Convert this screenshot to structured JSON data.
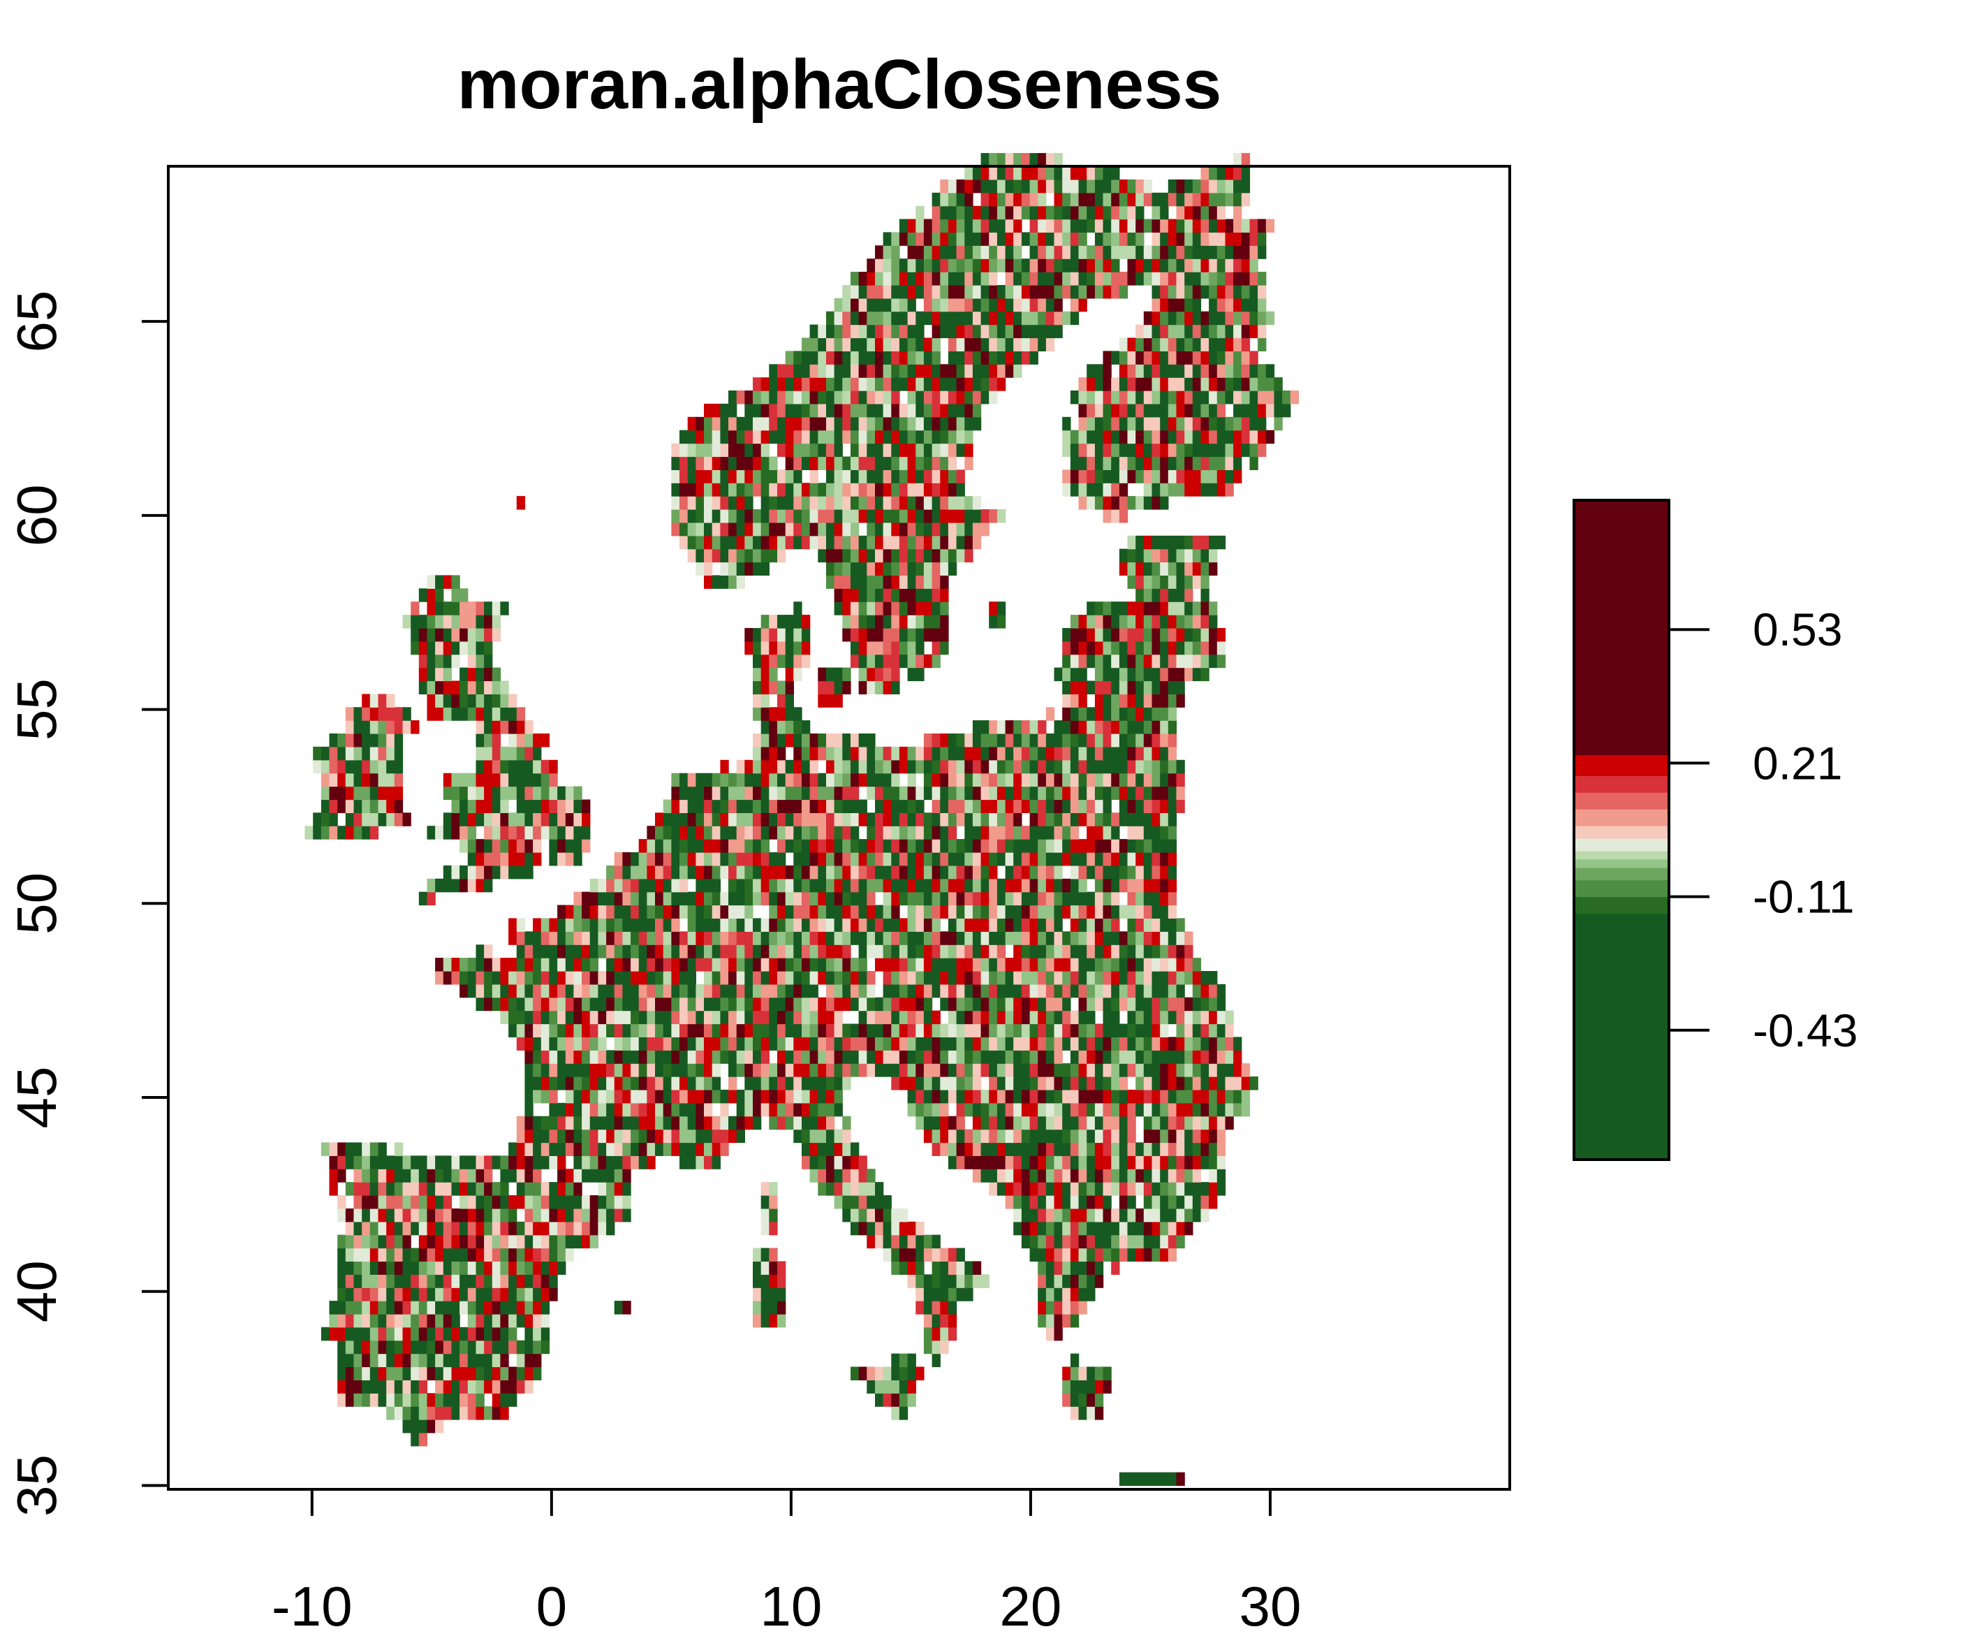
{
  "chart_data": {
    "type": "heatmap",
    "title": "moran.alphaCloseness",
    "xlabel": "",
    "ylabel": "",
    "xlim": [
      -16,
      40
    ],
    "ylim": [
      34.9,
      69
    ],
    "x_ticks": [
      "-10",
      "0",
      "10",
      "20",
      "30"
    ],
    "y_ticks": [
      "35",
      "40",
      "45",
      "50",
      "55",
      "60",
      "65"
    ],
    "grid": false,
    "description_of_values": "raster grid cells over Europe, per-cell value of moran.alphaCloseness",
    "value_range": [
      -0.74,
      0.84
    ],
    "legend": {
      "placement": "right",
      "ticks": [
        "0.53",
        "0.21",
        "-0.11",
        "-0.43"
      ],
      "tick_values": [
        0.53,
        0.21,
        -0.11,
        -0.43
      ],
      "color_bands": [
        {
          "from": -0.74,
          "to": -0.15,
          "color": "#165a22"
        },
        {
          "from": -0.15,
          "to": -0.11,
          "color": "#276c22"
        },
        {
          "from": -0.11,
          "to": -0.07,
          "color": "#4d8e43"
        },
        {
          "from": -0.07,
          "to": -0.04,
          "color": "#6ea65f"
        },
        {
          "from": -0.04,
          "to": -0.02,
          "color": "#94c488"
        },
        {
          "from": -0.02,
          "to": 0.0,
          "color": "#bad9ad"
        },
        {
          "from": 0.0,
          "to": 0.03,
          "color": "#e2ebd9"
        },
        {
          "from": 0.03,
          "to": 0.06,
          "color": "#f6c9bd"
        },
        {
          "from": 0.06,
          "to": 0.1,
          "color": "#f19b8d"
        },
        {
          "from": 0.1,
          "to": 0.14,
          "color": "#e46561"
        },
        {
          "from": 0.14,
          "to": 0.18,
          "color": "#d83139"
        },
        {
          "from": 0.18,
          "to": 0.23,
          "color": "#cc0000"
        },
        {
          "from": 0.23,
          "to": 0.84,
          "color": "#63000f"
        }
      ]
    }
  }
}
